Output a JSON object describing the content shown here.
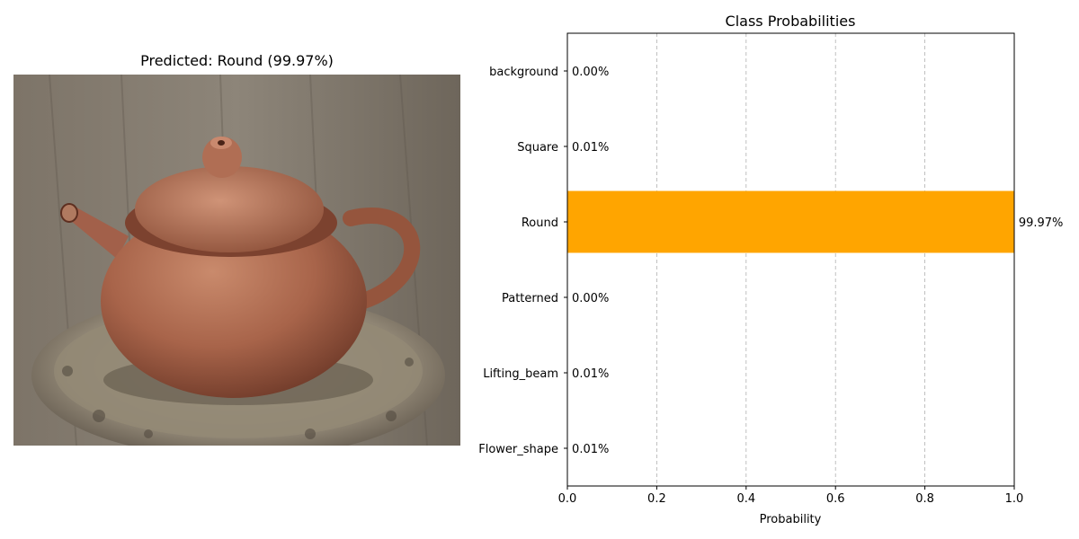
{
  "image_panel": {
    "title": "Predicted: Round (99.97%)",
    "subject": "teapot-photo"
  },
  "chart_data": {
    "type": "bar",
    "orientation": "horizontal",
    "title": "Class Probabilities",
    "xlabel": "Probability",
    "ylabel": "",
    "xlim": [
      0,
      1
    ],
    "x_ticks": [
      "0.0",
      "0.2",
      "0.4",
      "0.6",
      "0.8",
      "1.0"
    ],
    "grid": "x-dashed",
    "categories": [
      "background",
      "Square",
      "Round",
      "Patterned",
      "Lifting_beam",
      "Flower_shape"
    ],
    "values": [
      0.0,
      0.0001,
      0.9997,
      0.0,
      0.0001,
      0.0001
    ],
    "labels": [
      "0.00%",
      "0.01%",
      "99.97%",
      "0.00%",
      "0.01%",
      "0.01%"
    ],
    "bar_colors": [
      "#1f77b4",
      "#1f77b4",
      "#ffa500",
      "#1f77b4",
      "#1f77b4",
      "#1f77b4"
    ]
  }
}
